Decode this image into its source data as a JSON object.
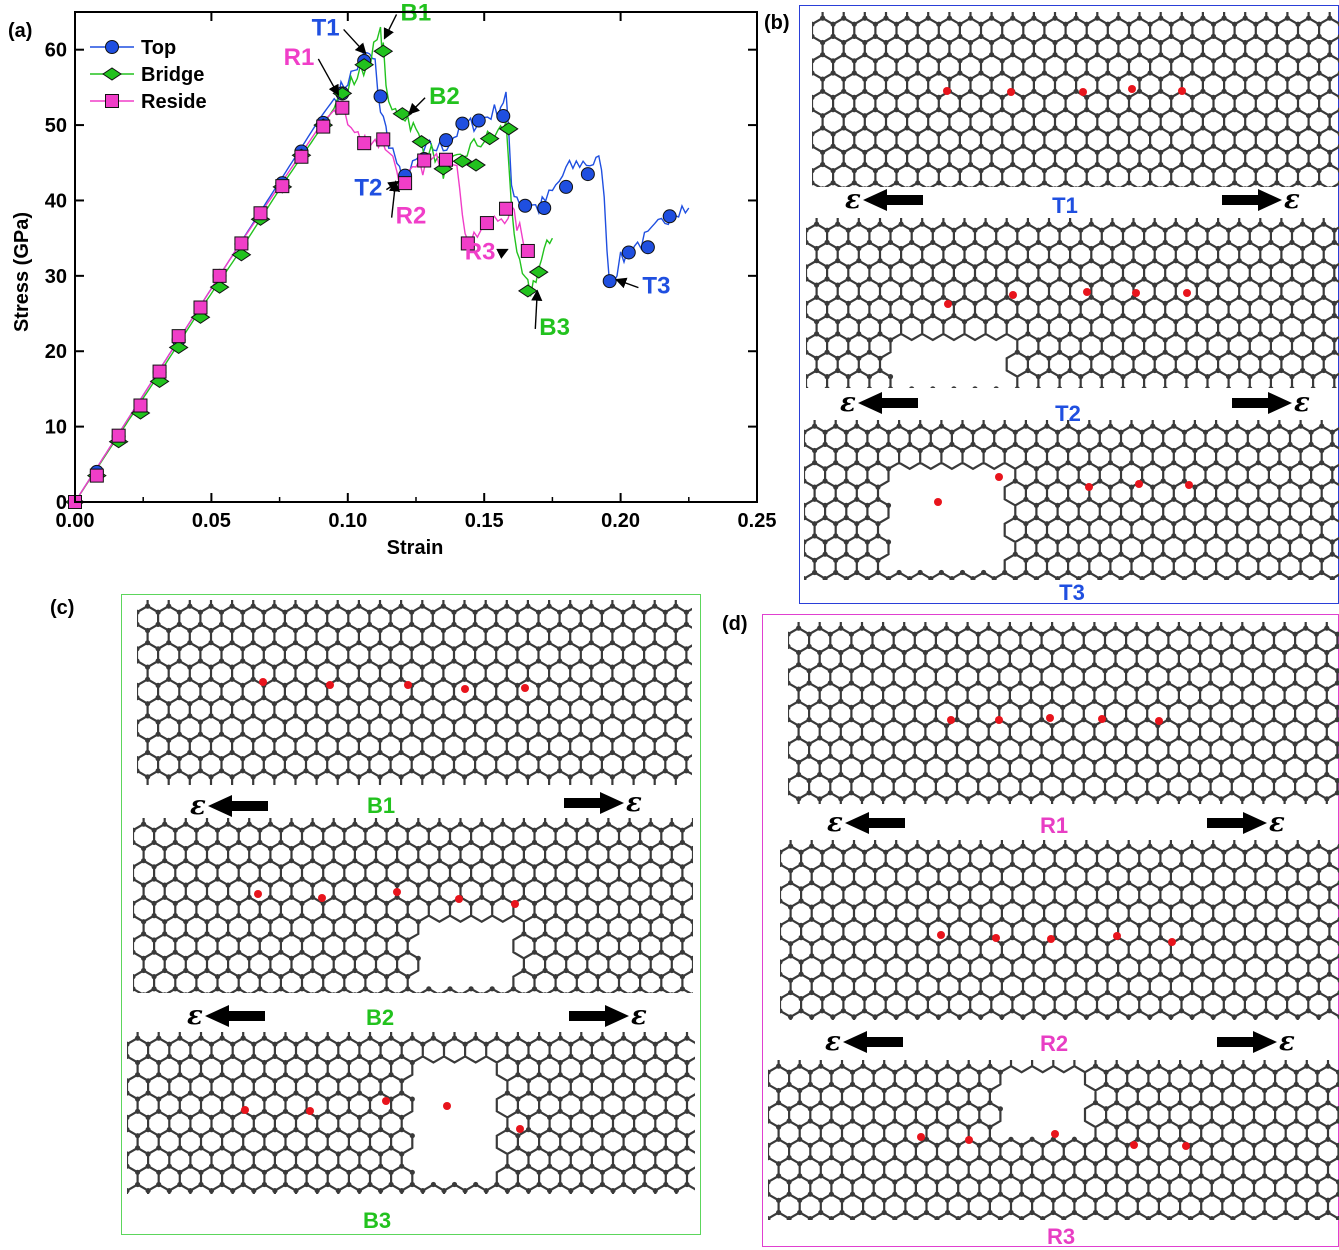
{
  "panels": {
    "a": "(a)",
    "b": "(b)",
    "c": "(c)",
    "d": "(d)"
  },
  "epsilon_symbol": "ε",
  "colors": {
    "top": "#1f4fe0",
    "bridge": "#22c21e",
    "reside": "#f03ec8",
    "atom": "#3a3a3a",
    "defect_atom": "#e8141c",
    "frame_b": "#2a3fd8",
    "frame_c": "#5cd65c",
    "frame_d": "#e040d0"
  },
  "chart_data": {
    "type": "line",
    "xlabel": "Strain",
    "ylabel": "Stress (GPa)",
    "xlim": [
      0,
      0.25
    ],
    "ylim": [
      0,
      65
    ],
    "xticks": [
      "0.00",
      "0.05",
      "0.10",
      "0.15",
      "0.20",
      "0.25"
    ],
    "yticks": [
      "0",
      "10",
      "20",
      "30",
      "40",
      "50",
      "60"
    ],
    "legend_position": "top-left",
    "series": [
      {
        "name": "Top",
        "color": "#1f4fe0",
        "marker": "circle",
        "line": [
          [
            0,
            0
          ],
          [
            0.015,
            8.5
          ],
          [
            0.03,
            17
          ],
          [
            0.045,
            25.5
          ],
          [
            0.06,
            34
          ],
          [
            0.075,
            42.5
          ],
          [
            0.09,
            51
          ],
          [
            0.1,
            56
          ],
          [
            0.107,
            59.5
          ],
          [
            0.11,
            58
          ],
          [
            0.112,
            52
          ],
          [
            0.115,
            48
          ],
          [
            0.118,
            45
          ],
          [
            0.12,
            42
          ],
          [
            0.125,
            45
          ],
          [
            0.13,
            47
          ],
          [
            0.135,
            47
          ],
          [
            0.14,
            49
          ],
          [
            0.145,
            50
          ],
          [
            0.15,
            51
          ],
          [
            0.155,
            52
          ],
          [
            0.158,
            54
          ],
          [
            0.16,
            42
          ],
          [
            0.163,
            40
          ],
          [
            0.17,
            39
          ],
          [
            0.175,
            41
          ],
          [
            0.18,
            44
          ],
          [
            0.185,
            45
          ],
          [
            0.19,
            45
          ],
          [
            0.193,
            45
          ],
          [
            0.196,
            29
          ],
          [
            0.2,
            32
          ],
          [
            0.205,
            34
          ],
          [
            0.21,
            35
          ],
          [
            0.215,
            37
          ],
          [
            0.22,
            39
          ],
          [
            0.225,
            39
          ]
        ],
        "markers": [
          [
            0,
            0
          ],
          [
            0.008,
            4
          ],
          [
            0.016,
            8.7
          ],
          [
            0.024,
            12.8
          ],
          [
            0.031,
            17.2
          ],
          [
            0.038,
            21.5
          ],
          [
            0.046,
            25.8
          ],
          [
            0.053,
            30
          ],
          [
            0.061,
            34.2
          ],
          [
            0.068,
            38.2
          ],
          [
            0.076,
            42.3
          ],
          [
            0.083,
            46.5
          ],
          [
            0.091,
            50.3
          ],
          [
            0.098,
            54.2
          ],
          [
            0.106,
            58.5
          ],
          [
            0.112,
            53.8
          ],
          [
            0.121,
            43.3
          ],
          [
            0.128,
            45.5
          ],
          [
            0.136,
            48
          ],
          [
            0.142,
            50.2
          ],
          [
            0.148,
            50.6
          ],
          [
            0.157,
            51.2
          ],
          [
            0.165,
            39.3
          ],
          [
            0.172,
            39
          ],
          [
            0.18,
            41.8
          ],
          [
            0.188,
            43.5
          ],
          [
            0.196,
            29.3
          ],
          [
            0.203,
            33.1
          ],
          [
            0.21,
            33.8
          ],
          [
            0.218,
            37.9
          ]
        ]
      },
      {
        "name": "Bridge",
        "color": "#22c21e",
        "marker": "diamond",
        "line": [
          [
            0,
            0
          ],
          [
            0.015,
            8.3
          ],
          [
            0.03,
            16.5
          ],
          [
            0.045,
            25
          ],
          [
            0.06,
            33
          ],
          [
            0.075,
            41.5
          ],
          [
            0.09,
            49.5
          ],
          [
            0.1,
            55
          ],
          [
            0.107,
            58
          ],
          [
            0.112,
            62
          ],
          [
            0.113,
            60
          ],
          [
            0.115,
            52
          ],
          [
            0.12,
            51.5
          ],
          [
            0.122,
            51
          ],
          [
            0.125,
            49
          ],
          [
            0.128,
            47
          ],
          [
            0.132,
            46
          ],
          [
            0.135,
            44
          ],
          [
            0.14,
            45
          ],
          [
            0.145,
            47
          ],
          [
            0.15,
            48
          ],
          [
            0.155,
            49
          ],
          [
            0.158,
            50
          ],
          [
            0.16,
            40
          ],
          [
            0.162,
            32
          ],
          [
            0.165,
            29
          ],
          [
            0.167,
            28
          ],
          [
            0.17,
            31
          ],
          [
            0.172,
            33
          ],
          [
            0.175,
            35
          ]
        ],
        "markers": [
          [
            0,
            0
          ],
          [
            0.008,
            3.5
          ],
          [
            0.016,
            8
          ],
          [
            0.024,
            11.8
          ],
          [
            0.031,
            16
          ],
          [
            0.038,
            20.5
          ],
          [
            0.046,
            24.5
          ],
          [
            0.053,
            28.5
          ],
          [
            0.061,
            32.8
          ],
          [
            0.068,
            37.5
          ],
          [
            0.076,
            41.8
          ],
          [
            0.083,
            46
          ],
          [
            0.091,
            50
          ],
          [
            0.098,
            54.2
          ],
          [
            0.106,
            58
          ],
          [
            0.113,
            59.8
          ],
          [
            0.12,
            51.5
          ],
          [
            0.127,
            47.8
          ],
          [
            0.135,
            44.2
          ],
          [
            0.142,
            45.2
          ],
          [
            0.147,
            44.7
          ],
          [
            0.152,
            48.2
          ],
          [
            0.159,
            49.5
          ],
          [
            0.166,
            28
          ],
          [
            0.17,
            30.5
          ]
        ]
      },
      {
        "name": "Reside",
        "color": "#f03ec8",
        "marker": "square",
        "line": [
          [
            0,
            0
          ],
          [
            0.015,
            8.5
          ],
          [
            0.03,
            17
          ],
          [
            0.045,
            25.5
          ],
          [
            0.06,
            34
          ],
          [
            0.075,
            42
          ],
          [
            0.09,
            50
          ],
          [
            0.095,
            52
          ],
          [
            0.098,
            52.5
          ],
          [
            0.1,
            50
          ],
          [
            0.105,
            48
          ],
          [
            0.11,
            48
          ],
          [
            0.115,
            47
          ],
          [
            0.118,
            44
          ],
          [
            0.12,
            42
          ],
          [
            0.125,
            44
          ],
          [
            0.13,
            45
          ],
          [
            0.135,
            45.5
          ],
          [
            0.14,
            45.8
          ],
          [
            0.142,
            37
          ],
          [
            0.145,
            35
          ],
          [
            0.15,
            36.5
          ],
          [
            0.155,
            37.5
          ],
          [
            0.16,
            38.5
          ],
          [
            0.163,
            36
          ],
          [
            0.165,
            34
          ],
          [
            0.168,
            33.5
          ]
        ],
        "markers": [
          [
            0,
            0
          ],
          [
            0.008,
            3.5
          ],
          [
            0.016,
            8.8
          ],
          [
            0.024,
            12.8
          ],
          [
            0.031,
            17.3
          ],
          [
            0.038,
            22
          ],
          [
            0.046,
            25.8
          ],
          [
            0.053,
            30
          ],
          [
            0.061,
            34.3
          ],
          [
            0.068,
            38.3
          ],
          [
            0.076,
            41.9
          ],
          [
            0.083,
            45.8
          ],
          [
            0.091,
            49.8
          ],
          [
            0.098,
            52.3
          ],
          [
            0.106,
            47.6
          ],
          [
            0.113,
            48.1
          ],
          [
            0.121,
            42.3
          ],
          [
            0.128,
            45.3
          ],
          [
            0.136,
            45.4
          ],
          [
            0.144,
            34.3
          ],
          [
            0.151,
            37
          ],
          [
            0.158,
            38.9
          ],
          [
            0.166,
            33.3
          ]
        ]
      }
    ],
    "annotations": [
      {
        "text": "T1",
        "series": "Top",
        "x": 0.108,
        "y": 59.5
      },
      {
        "text": "T2",
        "series": "Top",
        "x": 0.12,
        "y": 42.5
      },
      {
        "text": "T3",
        "series": "Top",
        "x": 0.197,
        "y": 29.5
      },
      {
        "text": "B1",
        "series": "Bridge",
        "x": 0.112,
        "y": 61.5
      },
      {
        "text": "B2",
        "series": "Bridge",
        "x": 0.121,
        "y": 51.5
      },
      {
        "text": "B3",
        "series": "Bridge",
        "x": 0.168,
        "y": 28
      },
      {
        "text": "R1",
        "series": "Reside",
        "x": 0.098,
        "y": 54
      },
      {
        "text": "R2",
        "series": "Reside",
        "x": 0.119,
        "y": 42.5
      },
      {
        "text": "R3",
        "series": "Reside",
        "x": 0.16,
        "y": 33.5
      }
    ]
  },
  "snapshots": {
    "b": [
      "T1",
      "T2",
      "T3"
    ],
    "c": [
      "B1",
      "B2",
      "B3"
    ],
    "d": [
      "R1",
      "R2",
      "R3"
    ]
  }
}
